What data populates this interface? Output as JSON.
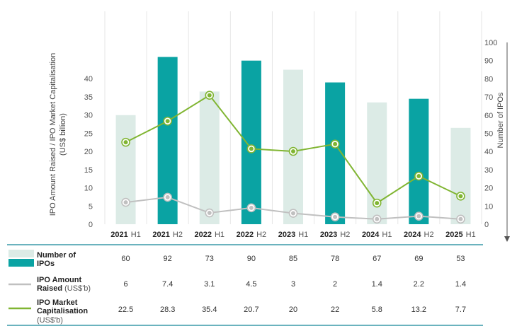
{
  "chart_data": {
    "type": "bar",
    "categories": [
      "2021 H1",
      "2021 H2",
      "2022 H1",
      "2022 H2",
      "2023 H1",
      "2023 H2",
      "2024 H1",
      "2024 H2",
      "2025 H1"
    ],
    "category_years": [
      "2021",
      "2021",
      "2022",
      "2022",
      "2023",
      "2023",
      "2024",
      "2024",
      "2025"
    ],
    "category_halves": [
      "H1",
      "H2",
      "H1",
      "H2",
      "H1",
      "H2",
      "H1",
      "H2",
      "H1"
    ],
    "left_axis": {
      "label_line1": "IPO Amount Raised / IPO Market Capitalisation",
      "label_line2": "(US$ billion)",
      "ylim": [
        0,
        50
      ],
      "ticks": [
        "0",
        "5",
        "10",
        "15",
        "20",
        "25",
        "30",
        "35",
        "40"
      ]
    },
    "right_axis": {
      "label": "Number of IPOs",
      "ylim": [
        0,
        100
      ],
      "ticks": [
        "0",
        "10",
        "20",
        "30",
        "40",
        "50",
        "60",
        "70",
        "80",
        "90",
        "100"
      ]
    },
    "grid": "vertical",
    "colors": {
      "bar_h1": "#dcebe6",
      "bar_h2": "#0aa3a3",
      "amount_line": "#c0c0c0",
      "cap_line": "#80b532",
      "rule": "#3a9aa8",
      "grid": "#e6e6e6"
    },
    "series": [
      {
        "name": "Number of IPOs",
        "axis": "right",
        "kind": "bar",
        "values": [
          60,
          92,
          73,
          90,
          85,
          78,
          67,
          69,
          53
        ],
        "labels": [
          "60",
          "92",
          "73",
          "90",
          "85",
          "78",
          "67",
          "69",
          "53"
        ]
      },
      {
        "name": "IPO Amount Raised (US$'b)",
        "axis": "left",
        "kind": "line",
        "values": [
          6,
          7.4,
          3.1,
          4.5,
          3,
          2,
          1.4,
          2.2,
          1.4
        ],
        "labels": [
          "6",
          "7.4",
          "3.1",
          "4.5",
          "3",
          "2",
          "1.4",
          "2.2",
          "1.4"
        ]
      },
      {
        "name": "IPO Market Capitalisation (US$'b)",
        "axis": "left",
        "kind": "line",
        "values": [
          22.5,
          28.3,
          35.4,
          20.7,
          20,
          22,
          5.8,
          13.2,
          7.7
        ],
        "labels": [
          "22.5",
          "28.3",
          "35.4",
          "20.7",
          "20",
          "22",
          "5.8",
          "13.2",
          "7.7"
        ]
      }
    ],
    "legend": {
      "ipos_line1": "Number of",
      "ipos_line2": "IPOs",
      "amount_line1": "IPO Amount",
      "amount_line2": "Raised",
      "amount_unit": "(US$'b)",
      "cap_line1": "IPO Market",
      "cap_line2": "Capitalisation",
      "cap_line3": "(US$'b)"
    }
  }
}
